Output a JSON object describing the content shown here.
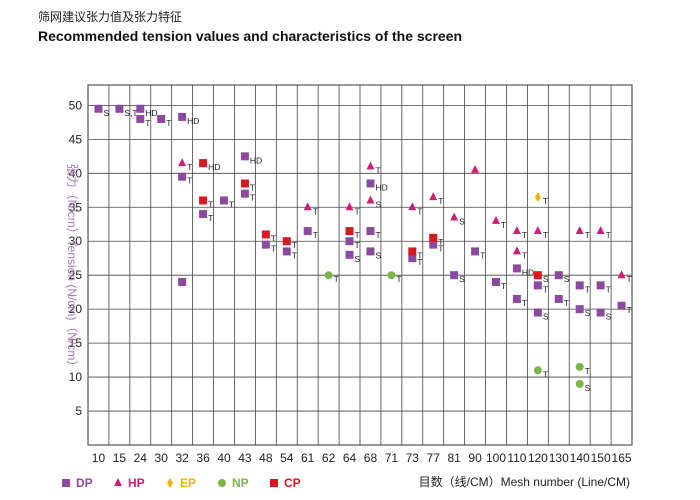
{
  "chart_data": {
    "type": "scatter",
    "title": "筛网建议张力值及张力特征",
    "subtitle": "Recommended tension values and characteristics of the screen",
    "ylabel": "张力（N/cm）Tension (N/cm)（N/cm）",
    "xlabel": "目数（线/CM）Mesh number (Line/CM)",
    "categories": [
      "10",
      "15",
      "24",
      "30",
      "32",
      "36",
      "40",
      "43",
      "48",
      "54",
      "61",
      "62",
      "64",
      "68",
      "71",
      "73",
      "77",
      "81",
      "90",
      "100",
      "110",
      "120",
      "130",
      "140",
      "150",
      "165"
    ],
    "ylim": [
      0,
      53
    ],
    "yticks": [
      5,
      10,
      15,
      20,
      25,
      30,
      35,
      40,
      45,
      50
    ],
    "grid": true,
    "legend_position": "bottom",
    "series": [
      {
        "name": "DP",
        "symbol": "square",
        "color": "#8b4a9e",
        "points": [
          {
            "x": "10",
            "y": 49.5,
            "label": "S"
          },
          {
            "x": "15",
            "y": 49.5,
            "label": "S,T"
          },
          {
            "x": "24",
            "y": 49.5,
            "label": "HD"
          },
          {
            "x": "24",
            "y": 48,
            "label": "T"
          },
          {
            "x": "30",
            "y": 48,
            "label": "T"
          },
          {
            "x": "32",
            "y": 48.3,
            "label": "HD"
          },
          {
            "x": "32",
            "y": 39.5,
            "label": "T"
          },
          {
            "x": "32",
            "y": 24,
            "label": ""
          },
          {
            "x": "36",
            "y": 34,
            "label": "T"
          },
          {
            "x": "40",
            "y": 36,
            "label": "T"
          },
          {
            "x": "43",
            "y": 42.5,
            "label": "HD"
          },
          {
            "x": "43",
            "y": 37,
            "label": "T"
          },
          {
            "x": "48",
            "y": 29.5,
            "label": "T"
          },
          {
            "x": "54",
            "y": 28.5,
            "label": "T"
          },
          {
            "x": "61",
            "y": 31.5,
            "label": "T"
          },
          {
            "x": "64",
            "y": 28,
            "label": "S"
          },
          {
            "x": "64",
            "y": 30,
            "label": "T"
          },
          {
            "x": "68",
            "y": 38.5,
            "label": "HD"
          },
          {
            "x": "68",
            "y": 31.5,
            "label": "T"
          },
          {
            "x": "68",
            "y": 28.5,
            "label": "S"
          },
          {
            "x": "73",
            "y": 27.5,
            "label": "T"
          },
          {
            "x": "77",
            "y": 29.5,
            "label": "T"
          },
          {
            "x": "81",
            "y": 25,
            "label": "S"
          },
          {
            "x": "90",
            "y": 28.5,
            "label": "T"
          },
          {
            "x": "100",
            "y": 24,
            "label": "T"
          },
          {
            "x": "110",
            "y": 26,
            "label": "HD"
          },
          {
            "x": "110",
            "y": 21.5,
            "label": "T"
          },
          {
            "x": "120",
            "y": 23.5,
            "label": "T"
          },
          {
            "x": "120",
            "y": 19.5,
            "label": "S"
          },
          {
            "x": "130",
            "y": 25,
            "label": "S"
          },
          {
            "x": "130",
            "y": 21.5,
            "label": "T"
          },
          {
            "x": "140",
            "y": 23.5,
            "label": "T"
          },
          {
            "x": "140",
            "y": 20,
            "label": "S"
          },
          {
            "x": "150",
            "y": 23.5,
            "label": "T"
          },
          {
            "x": "150",
            "y": 19.5,
            "label": "S"
          },
          {
            "x": "165",
            "y": 20.5,
            "label": "T"
          }
        ]
      },
      {
        "name": "HP",
        "symbol": "triangle",
        "color": "#cc1f78",
        "points": [
          {
            "x": "32",
            "y": 41.5,
            "label": "T"
          },
          {
            "x": "61",
            "y": 35,
            "label": "T"
          },
          {
            "x": "64",
            "y": 35,
            "label": "T"
          },
          {
            "x": "68",
            "y": 41,
            "label": "T"
          },
          {
            "x": "68",
            "y": 36,
            "label": "S"
          },
          {
            "x": "73",
            "y": 35,
            "label": "T"
          },
          {
            "x": "77",
            "y": 36.5,
            "label": "T"
          },
          {
            "x": "81",
            "y": 33.5,
            "label": "S"
          },
          {
            "x": "90",
            "y": 40.5,
            "label": ""
          },
          {
            "x": "100",
            "y": 33,
            "label": "T"
          },
          {
            "x": "110",
            "y": 31.5,
            "label": "T"
          },
          {
            "x": "110",
            "y": 28.5,
            "label": "T"
          },
          {
            "x": "120",
            "y": 31.5,
            "label": "T"
          },
          {
            "x": "140",
            "y": 31.5,
            "label": "T"
          },
          {
            "x": "150",
            "y": 31.5,
            "label": "T"
          },
          {
            "x": "165",
            "y": 25,
            "label": "T"
          }
        ]
      },
      {
        "name": "EP",
        "symbol": "diamond",
        "color": "#f0b400",
        "points": [
          {
            "x": "120",
            "y": 36.5,
            "label": "T"
          }
        ]
      },
      {
        "name": "NP",
        "symbol": "circle",
        "color": "#7ab648",
        "points": [
          {
            "x": "62",
            "y": 25,
            "label": "T"
          },
          {
            "x": "71",
            "y": 25,
            "label": "T"
          },
          {
            "x": "120",
            "y": 11,
            "label": "T"
          },
          {
            "x": "140",
            "y": 11.5,
            "label": "T"
          },
          {
            "x": "140",
            "y": 9,
            "label": "S"
          }
        ]
      },
      {
        "name": "CP",
        "symbol": "square",
        "color": "#d71920",
        "points": [
          {
            "x": "36",
            "y": 41.5,
            "label": "HD"
          },
          {
            "x": "36",
            "y": 36,
            "label": "T"
          },
          {
            "x": "43",
            "y": 38.5,
            "label": "T"
          },
          {
            "x": "48",
            "y": 31,
            "label": "T"
          },
          {
            "x": "54",
            "y": 30,
            "label": "T"
          },
          {
            "x": "64",
            "y": 31.5,
            "label": "T"
          },
          {
            "x": "73",
            "y": 28.5,
            "label": "T"
          },
          {
            "x": "77",
            "y": 30.5,
            "label": "T"
          },
          {
            "x": "120",
            "y": 25,
            "label": "S"
          }
        ]
      }
    ]
  }
}
